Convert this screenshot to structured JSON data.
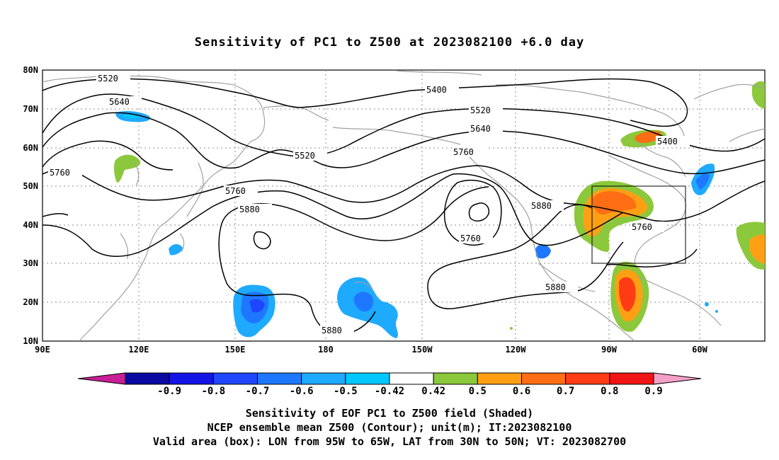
{
  "title": "Sensitivity of PC1 to Z500 at 2023082100 +6.0 day",
  "lat_labels": [
    "80N",
    "70N",
    "60N",
    "50N",
    "40N",
    "30N",
    "20N",
    "10N"
  ],
  "lon_labels": [
    "90E",
    "120E",
    "150E",
    "180",
    "150W",
    "120W",
    "90W",
    "60W"
  ],
  "contour_labels": [
    "5520",
    "5640",
    "5400",
    "5520",
    "5640",
    "5760",
    "5520",
    "5760",
    "5760",
    "5880",
    "5880",
    "5760",
    "5760",
    "5400",
    "5880",
    "5880"
  ],
  "colorbar": {
    "labels": [
      "-0.9",
      "-0.8",
      "-0.7",
      "-0.6",
      "-0.5",
      "-0.42",
      "0.42",
      "0.5",
      "0.6",
      "0.7",
      "0.8",
      "0.9"
    ],
    "colors": [
      "#c81e96",
      "#0a0aa0",
      "#1414e6",
      "#1e46ff",
      "#1e78ff",
      "#1eaaff",
      "#00c8ff",
      "#ffffff",
      "#8cc83c",
      "#ffa014",
      "#ff6e14",
      "#ff3c14",
      "#f01414",
      "#f5a0c8"
    ]
  },
  "captions": [
    "Sensitivity of EOF PC1 to Z500 field (Shaded)",
    "NCEP ensemble mean Z500 (Contour); unit(m); IT:2023082100",
    "Valid area (box): LON from 95W to 65W, LAT from 30N to 50N; VT: 2023082700"
  ]
}
